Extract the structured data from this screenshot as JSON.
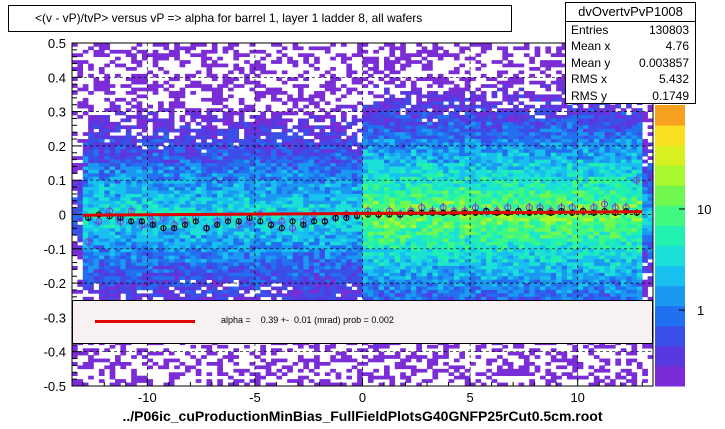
{
  "chart_data": {
    "type": "heatmap",
    "title": "<(v - vP)/tvP> versus   vP => alpha for barrel 1, layer 1 ladder 8, all wafers",
    "xlabel": "../P06ic_cuProductionMinBias_FullFieldPlotsG40GNFP25rCut0.5cm.root",
    "xlim": [
      -13.5,
      13.5
    ],
    "ylim": [
      -0.5,
      0.5
    ],
    "x_ticks": [
      "-10",
      "-5",
      "0",
      "5",
      "10"
    ],
    "y_ticks": [
      "0.5",
      "0.4",
      "0.3",
      "0.2",
      "0.1",
      "0",
      "-0.1",
      "-0.2",
      "-0.3",
      "-0.4",
      "-0.5"
    ],
    "z_ticks": [
      "10",
      "1"
    ],
    "z_scale": "log",
    "grid": true,
    "profile": {
      "x": [
        -12.75,
        -12.25,
        -11.75,
        -11.25,
        -10.75,
        -10.25,
        -9.75,
        -9.25,
        -8.75,
        -8.25,
        -7.75,
        -7.25,
        -6.75,
        -6.25,
        -5.75,
        -5.25,
        -4.75,
        -4.25,
        -3.75,
        -3.25,
        -2.75,
        -2.25,
        -1.75,
        -1.25,
        -0.75,
        -0.25,
        0.25,
        0.75,
        1.25,
        1.75,
        2.25,
        2.75,
        3.25,
        3.75,
        4.25,
        4.75,
        5.25,
        5.75,
        6.25,
        6.75,
        7.25,
        7.75,
        8.25,
        8.75,
        9.25,
        9.75,
        10.25,
        10.75,
        11.25,
        11.75,
        12.25,
        12.75
      ],
      "y": [
        -0.01,
        0.0,
        -0.005,
        -0.01,
        -0.02,
        -0.02,
        -0.03,
        -0.04,
        -0.04,
        -0.03,
        -0.02,
        -0.04,
        -0.03,
        -0.02,
        -0.02,
        -0.01,
        -0.02,
        -0.03,
        -0.04,
        -0.02,
        -0.03,
        -0.02,
        -0.02,
        -0.01,
        -0.01,
        -0.005,
        0.0,
        0.0,
        0.0,
        0.0,
        0.005,
        0.005,
        0.005,
        0.005,
        0.005,
        0.005,
        0.005,
        0.01,
        0.005,
        0.005,
        0.01,
        0.005,
        0.01,
        0.005,
        0.01,
        0.005,
        0.01,
        0.005,
        0.01,
        0.005,
        0.01,
        0.005
      ],
      "y_alt": [
        -0.08,
        -0.02,
        0.01,
        -0.02,
        0.01,
        -0.03,
        -0.02,
        -0.01,
        -0.03,
        -0.02,
        -0.01,
        -0.04,
        -0.02,
        -0.01,
        -0.03,
        -0.02,
        0.0,
        -0.03,
        -0.02,
        -0.04,
        -0.02,
        0.0,
        -0.02,
        -0.01,
        0.0,
        0.0,
        0.01,
        0.0,
        0.01,
        0.0,
        0.01,
        0.02,
        0.01,
        0.02,
        0.01,
        0.01,
        0.02,
        0.01,
        0.01,
        0.02,
        0.01,
        0.02,
        0.02,
        0.01,
        0.02,
        0.02,
        0.01,
        0.02,
        0.03,
        0.02,
        0.02,
        0.1
      ]
    },
    "fit": {
      "slope_mrad": 0.39,
      "intercept": 0.003,
      "label": "alpha =    0.39 +-  0.01 (mrad) prob = 0.002"
    },
    "stats": {
      "name": "dvOvertvPvP1008",
      "rows": [
        {
          "k": "Entries",
          "v": "130803"
        },
        {
          "k": "Mean x",
          "v": "4.76"
        },
        {
          "k": "Mean y",
          "v": "0.003857"
        },
        {
          "k": "RMS x",
          "v": "5.432"
        },
        {
          "k": "RMS y",
          "v": "0.1749"
        }
      ]
    },
    "palette": [
      "#7a2cd6",
      "#5a38e0",
      "#3a4ee8",
      "#2070f0",
      "#1a98f2",
      "#18c0f0",
      "#1ae0d8",
      "#20f0b0",
      "#40f880",
      "#70f850",
      "#a8f830",
      "#d8f020",
      "#f8e020",
      "#f8a020"
    ],
    "colors": {
      "fit": "#e00000",
      "marker": "#000000",
      "marker_alt": "#7b3fd0"
    }
  }
}
